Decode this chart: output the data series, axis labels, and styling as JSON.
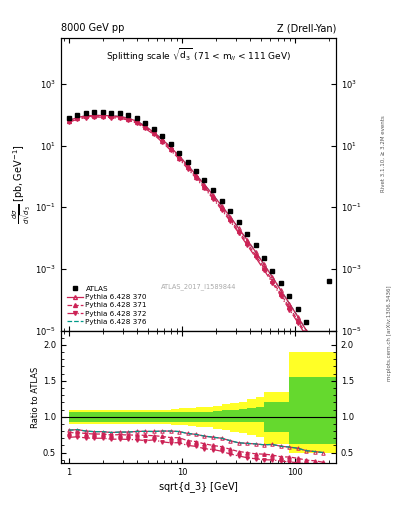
{
  "title_left": "8000 GeV pp",
  "title_right": "Z (Drell-Yan)",
  "main_title": "Splitting scale $\\sqrt{\\mathrm{d}_3}$ (71 < m$_{ll}$ < 111 GeV)",
  "xlabel": "sqrt{d_3} [GeV]",
  "ylabel_main": "d$\\sigma$/dsqrt($d_3$) [pb,GeV$^{-1}$]",
  "ylabel_ratio": "Ratio to ATLAS",
  "watermark": "ATLAS_2017_I1589844",
  "right_label1": "Rivet 3.1.10, ≥ 3.2M events",
  "right_label2": "mcplots.cern.ch [arXiv:1306.3436]",
  "atlas_x": [
    1.0,
    1.19,
    1.41,
    1.68,
    2.0,
    2.37,
    2.82,
    3.35,
    3.98,
    4.73,
    5.62,
    6.68,
    7.94,
    9.44,
    11.2,
    13.3,
    15.8,
    18.8,
    22.4,
    26.6,
    31.6,
    37.6,
    44.7,
    53.1,
    63.1,
    75.0,
    89.1,
    105.9,
    125.9,
    149.6,
    177.8,
    199.0
  ],
  "atlas_y": [
    80,
    100,
    115,
    120,
    120,
    118,
    112,
    98,
    78,
    54,
    34,
    20,
    11.0,
    5.8,
    3.0,
    1.5,
    0.74,
    0.35,
    0.16,
    0.075,
    0.033,
    0.014,
    0.0058,
    0.0023,
    0.00088,
    0.00034,
    0.00013,
    5e-05,
    1.9e-05,
    7e-06,
    2.6e-06,
    0.0004
  ],
  "p370_x": [
    1.0,
    1.19,
    1.41,
    1.68,
    2.0,
    2.37,
    2.82,
    3.35,
    3.98,
    4.73,
    5.62,
    6.68,
    7.94,
    9.44,
    11.2,
    13.3,
    15.8,
    18.8,
    22.4,
    26.6,
    31.6,
    37.6,
    44.7,
    53.1,
    63.1,
    75.0,
    89.1,
    105.9,
    125.9,
    149.6,
    177.8
  ],
  "p370_y": [
    65,
    82,
    92,
    95,
    95,
    92,
    88,
    77,
    62,
    43,
    27,
    16,
    8.8,
    4.6,
    2.3,
    1.13,
    0.54,
    0.25,
    0.112,
    0.05,
    0.021,
    0.0088,
    0.0036,
    0.0014,
    0.00054,
    0.0002,
    7.5e-05,
    2.8e-05,
    1e-05,
    3.6e-06,
    1.3e-06
  ],
  "p371_x": [
    1.0,
    1.19,
    1.41,
    1.68,
    2.0,
    2.37,
    2.82,
    3.35,
    3.98,
    4.73,
    5.62,
    6.68,
    7.94,
    9.44,
    11.2,
    13.3,
    15.8,
    18.8,
    22.4,
    26.6,
    31.6,
    37.6,
    44.7,
    53.1,
    63.1,
    75.0,
    89.1,
    105.9,
    125.9,
    149.6,
    177.8
  ],
  "p371_y": [
    62,
    78,
    88,
    91,
    91,
    88,
    84,
    73,
    58,
    40,
    25,
    14.5,
    7.8,
    4.1,
    2.0,
    0.98,
    0.46,
    0.21,
    0.093,
    0.041,
    0.017,
    0.007,
    0.0028,
    0.0011,
    0.00041,
    0.00015,
    5.7e-05,
    2.1e-05,
    7.5e-06,
    2.7e-06,
    9.5e-07
  ],
  "p372_x": [
    1.0,
    1.19,
    1.41,
    1.68,
    2.0,
    2.37,
    2.82,
    3.35,
    3.98,
    4.73,
    5.62,
    6.68,
    7.94,
    9.44,
    11.2,
    13.3,
    15.8,
    18.8,
    22.4,
    26.6,
    31.6,
    37.6,
    44.7,
    53.1,
    63.1,
    75.0,
    89.1,
    105.9,
    125.9,
    149.6,
    177.8
  ],
  "p372_y": [
    57,
    72,
    81,
    84,
    84,
    81,
    77,
    67,
    53,
    36,
    23,
    13,
    7.0,
    3.7,
    1.8,
    0.88,
    0.41,
    0.19,
    0.083,
    0.036,
    0.015,
    0.006,
    0.0024,
    0.00092,
    0.00035,
    0.00013,
    4.8e-05,
    1.8e-05,
    6.5e-06,
    2.3e-06,
    8e-07
  ],
  "p376_x": [
    1.0,
    1.19,
    1.41,
    1.68,
    2.0,
    2.37,
    2.82,
    3.35,
    3.98,
    4.73,
    5.62,
    6.68,
    7.94,
    9.44,
    11.2,
    13.3,
    15.8,
    18.8,
    22.4,
    26.6,
    31.6,
    37.6,
    44.7,
    53.1,
    63.1,
    75.0,
    89.1,
    105.9,
    125.9,
    149.6,
    177.8
  ],
  "p376_y": [
    65,
    82,
    92,
    95,
    95,
    92,
    88,
    77,
    62,
    43,
    27,
    16,
    8.8,
    4.6,
    2.3,
    1.13,
    0.54,
    0.25,
    0.112,
    0.05,
    0.021,
    0.0088,
    0.0036,
    0.0014,
    0.00054,
    0.0002,
    7.5e-05,
    2.8e-05,
    1e-05,
    3.6e-06,
    1.3e-06
  ],
  "color_370": "#cc2255",
  "color_376": "#009988",
  "xlim": [
    0.85,
    230
  ],
  "ylim_main": [
    1e-05,
    30000.0
  ],
  "ylim_ratio": [
    0.35,
    2.2
  ]
}
